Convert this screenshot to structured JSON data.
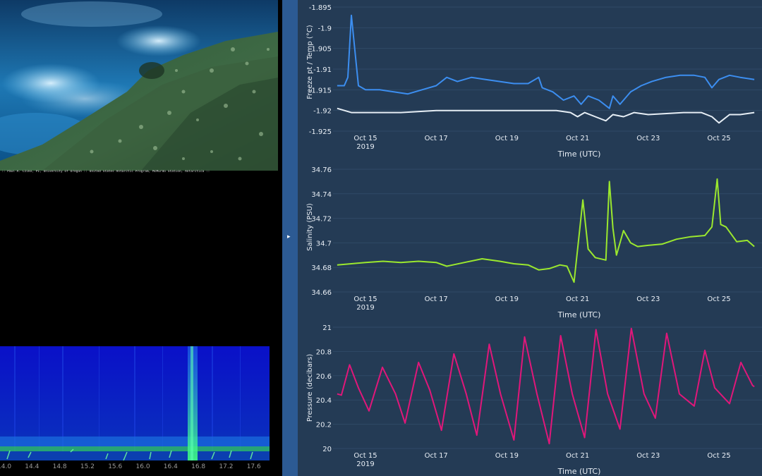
{
  "photo": {
    "credit": ":: Paul A. Cziko, PI, University of Oregon :: United States Antarctic Program, McMurdo Station, Antarctica ::"
  },
  "spectrogram": {
    "x_ticks": [
      "14.0",
      "14.4",
      "14.8",
      "15.2",
      "15.6",
      "16.0",
      "16.4",
      "16.8",
      "17.2",
      "17.6"
    ]
  },
  "panel_toggle": {
    "glyph": "▸"
  },
  "colors": {
    "panel_bg": "#243b55",
    "divider": "#2c5a93",
    "temp": "#3c8ef0",
    "freeze": "#e6eef5",
    "salinity": "#9be82e",
    "pressure": "#e0177a"
  },
  "chart_data": [
    {
      "type": "line",
      "xlabel": "Time (UTC)",
      "ylabel": "Freeze pt / Temp (°C)",
      "ylim": [
        -1.925,
        -1.895
      ],
      "xlim": [
        14.2,
        26.0
      ],
      "x_ticks": [
        {
          "v": 15,
          "label": "Oct 15",
          "sub": "2019"
        },
        {
          "v": 17,
          "label": "Oct 17"
        },
        {
          "v": 19,
          "label": "Oct 19"
        },
        {
          "v": 21,
          "label": "Oct 21"
        },
        {
          "v": 23,
          "label": "Oct 23"
        },
        {
          "v": 25,
          "label": "Oct 25"
        }
      ],
      "y_ticks": [
        "-1.895",
        "-1.9",
        "-1.905",
        "-1.91",
        "-1.915",
        "-1.92",
        "-1.925"
      ],
      "y_tick_values": [
        -1.895,
        -1.9,
        -1.905,
        -1.91,
        -1.915,
        -1.92,
        -1.925
      ],
      "series": [
        {
          "color": "#3c8ef0",
          "x": [
            14.2,
            14.4,
            14.5,
            14.6,
            14.8,
            15.0,
            15.4,
            15.8,
            16.2,
            16.6,
            17.0,
            17.3,
            17.6,
            18.0,
            18.4,
            18.8,
            19.2,
            19.6,
            19.9,
            20.0,
            20.3,
            20.6,
            20.9,
            21.1,
            21.3,
            21.6,
            21.9,
            22.0,
            22.2,
            22.5,
            22.8,
            23.1,
            23.5,
            23.9,
            24.3,
            24.6,
            24.8,
            25.0,
            25.3,
            25.6,
            26.0
          ],
          "y": [
            -1.914,
            -1.914,
            -1.912,
            -1.897,
            -1.914,
            -1.915,
            -1.915,
            -1.9155,
            -1.916,
            -1.915,
            -1.914,
            -1.912,
            -1.913,
            -1.912,
            -1.9125,
            -1.913,
            -1.9135,
            -1.9135,
            -1.912,
            -1.9145,
            -1.9155,
            -1.9175,
            -1.9165,
            -1.9185,
            -1.9165,
            -1.9175,
            -1.9195,
            -1.9165,
            -1.9185,
            -1.9155,
            -1.914,
            -1.913,
            -1.912,
            -1.9115,
            -1.9115,
            -1.912,
            -1.9145,
            -1.9125,
            -1.9115,
            -1.912,
            -1.9125
          ]
        },
        {
          "color": "#e6eef5",
          "x": [
            14.2,
            14.6,
            15.0,
            16.0,
            17.0,
            18.0,
            19.0,
            19.8,
            20.4,
            20.8,
            21.0,
            21.2,
            21.5,
            21.8,
            22.0,
            22.3,
            22.6,
            23.0,
            24.0,
            24.5,
            24.8,
            25.0,
            25.3,
            25.6,
            26.0
          ],
          "y": [
            -1.9195,
            -1.9205,
            -1.9205,
            -1.9205,
            -1.92,
            -1.92,
            -1.92,
            -1.92,
            -1.92,
            -1.9205,
            -1.9215,
            -1.9205,
            -1.9215,
            -1.9225,
            -1.921,
            -1.9215,
            -1.9205,
            -1.921,
            -1.9205,
            -1.9205,
            -1.9215,
            -1.923,
            -1.921,
            -1.921,
            -1.9205
          ]
        }
      ]
    },
    {
      "type": "line",
      "xlabel": "Time (UTC)",
      "ylabel": "Salinity (PSU)",
      "ylim": [
        34.66,
        34.76
      ],
      "xlim": [
        14.2,
        26.0
      ],
      "x_ticks": [
        {
          "v": 15,
          "label": "Oct 15",
          "sub": "2019"
        },
        {
          "v": 17,
          "label": "Oct 17"
        },
        {
          "v": 19,
          "label": "Oct 19"
        },
        {
          "v": 21,
          "label": "Oct 21"
        },
        {
          "v": 23,
          "label": "Oct 23"
        },
        {
          "v": 25,
          "label": "Oct 25"
        }
      ],
      "y_ticks": [
        "34.76",
        "34.74",
        "34.72",
        "34.7",
        "34.68",
        "34.66"
      ],
      "y_tick_values": [
        34.76,
        34.74,
        34.72,
        34.7,
        34.68,
        34.66
      ],
      "series": [
        {
          "color": "#9be82e",
          "x": [
            14.2,
            14.6,
            15.0,
            15.5,
            16.0,
            16.5,
            17.0,
            17.3,
            17.8,
            18.3,
            18.8,
            19.2,
            19.6,
            19.9,
            20.2,
            20.5,
            20.7,
            20.9,
            21.05,
            21.15,
            21.3,
            21.5,
            21.8,
            21.9,
            22.0,
            22.1,
            22.3,
            22.5,
            22.7,
            23.0,
            23.4,
            23.8,
            24.2,
            24.6,
            24.8,
            24.95,
            25.05,
            25.2,
            25.5,
            25.8,
            26.0
          ],
          "y": [
            34.682,
            34.683,
            34.684,
            34.685,
            34.684,
            34.685,
            34.684,
            34.681,
            34.684,
            34.687,
            34.685,
            34.683,
            34.682,
            34.678,
            34.679,
            34.682,
            34.681,
            34.668,
            34.708,
            34.735,
            34.695,
            34.688,
            34.686,
            34.75,
            34.712,
            34.69,
            34.71,
            34.7,
            34.697,
            34.698,
            34.699,
            34.703,
            34.705,
            34.706,
            34.713,
            34.752,
            34.715,
            34.713,
            34.701,
            34.702,
            34.697
          ]
        }
      ]
    },
    {
      "type": "line",
      "xlabel": "Time (UTC)",
      "ylabel": "Pressure (decibars)",
      "ylim": [
        20.0,
        21.0
      ],
      "xlim": [
        14.2,
        26.0
      ],
      "x_ticks": [
        {
          "v": 15,
          "label": "Oct 15",
          "sub": "2019"
        },
        {
          "v": 17,
          "label": "Oct 17"
        },
        {
          "v": 19,
          "label": "Oct 19"
        },
        {
          "v": 21,
          "label": "Oct 21"
        },
        {
          "v": 23,
          "label": "Oct 23"
        },
        {
          "v": 25,
          "label": "Oct 25"
        }
      ],
      "y_ticks": [
        "21",
        "20.8",
        "20.6",
        "20.4",
        "20.2",
        "20"
      ],
      "y_tick_values": [
        21.0,
        20.8,
        20.6,
        20.4,
        20.2,
        20.0
      ],
      "series": [
        {
          "color": "#e0177a",
          "x": [
            14.2,
            14.32,
            14.55,
            14.8,
            15.1,
            15.48,
            15.85,
            16.12,
            16.5,
            16.82,
            17.15,
            17.5,
            17.85,
            18.15,
            18.5,
            18.82,
            19.2,
            19.5,
            19.85,
            20.2,
            20.52,
            20.85,
            21.2,
            21.52,
            21.85,
            22.2,
            22.52,
            22.88,
            23.2,
            23.52,
            23.88,
            24.3,
            24.6,
            24.88,
            25.3,
            25.62,
            25.95,
            26.0
          ],
          "y": [
            20.45,
            20.44,
            20.69,
            20.5,
            20.31,
            20.67,
            20.45,
            20.21,
            20.71,
            20.48,
            20.15,
            20.78,
            20.45,
            20.11,
            20.86,
            20.45,
            20.07,
            20.92,
            20.45,
            20.04,
            20.93,
            20.45,
            20.09,
            20.98,
            20.45,
            20.16,
            20.99,
            20.45,
            20.25,
            20.95,
            20.45,
            20.35,
            20.81,
            20.5,
            20.37,
            20.71,
            20.52,
            20.51
          ]
        }
      ]
    }
  ]
}
